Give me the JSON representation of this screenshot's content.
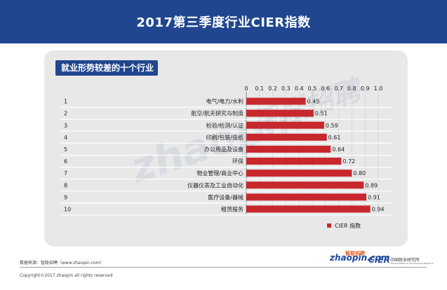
{
  "header": {
    "title": "2017第三季度行业CIER指数"
  },
  "subtitle": "就业形势较差的十个行业",
  "footer": {
    "source": "数据来源：智联招聘（www.zhaopin.com）",
    "copyright": "Copyright©2017 zhaopin all rights reserved"
  },
  "logos": {
    "zhaopin_cn": "智联招聘",
    "zhaopin_en": "zhaopin.com",
    "cier": "CIER",
    "cier_cn": "中国就业研究所",
    "cier_en": "China Institute for Employment Research"
  },
  "watermark": {
    "text": "zhaopin",
    "cn": "智联招聘"
  },
  "colors": {
    "header_bg": "#20468f",
    "bar": "#c8272e",
    "panel": "#e8e8e8"
  },
  "chart_data": {
    "type": "bar",
    "orientation": "horizontal",
    "ranks": [
      "1",
      "2",
      "3",
      "4",
      "5",
      "6",
      "7",
      "8",
      "9",
      "10"
    ],
    "categories": [
      "电气/电力/水利",
      "航空/航天研究与制造",
      "检验/检测/认证",
      "印刷/包装/造纸",
      "办公用品及设备",
      "环保",
      "物业管理/商业中心",
      "仪器仪表及工业自动化",
      "医疗设备/器械",
      "租赁服务"
    ],
    "series": [
      {
        "name": "CIER  指数",
        "values": [
          0.45,
          0.51,
          0.59,
          0.61,
          0.64,
          0.72,
          0.8,
          0.89,
          0.91,
          0.94
        ]
      }
    ],
    "value_labels": [
      "0.45",
      "0.51",
      "0.59",
      "0.61",
      "0.64",
      "0.72",
      "0.80",
      "0.89",
      "0.91",
      "0.94"
    ],
    "xlim": [
      0,
      1.0
    ],
    "ticks": [
      "0",
      "0.1",
      "0.2",
      "0.3",
      "0.4",
      "0.5",
      "0.6",
      "0.7",
      "0.8",
      "0.9",
      "1.0"
    ],
    "grid": true,
    "legend": "bottom-right"
  }
}
